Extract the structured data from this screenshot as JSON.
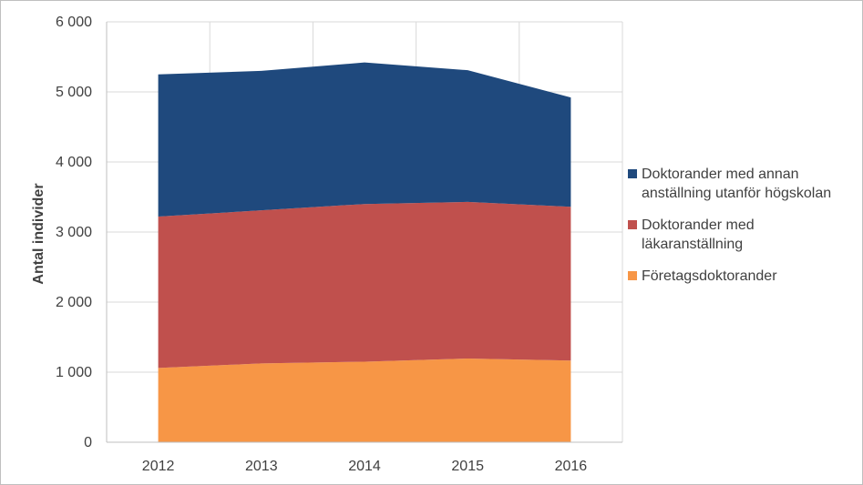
{
  "chart_data": {
    "type": "area",
    "stacked": true,
    "categories": [
      "2012",
      "2013",
      "2014",
      "2015",
      "2016"
    ],
    "series": [
      {
        "name": "Företagsdoktorander",
        "color": "#F79646",
        "values": [
          1060,
          1125,
          1150,
          1195,
          1165
        ]
      },
      {
        "name": "Doktorander med läkaranställning",
        "color": "#C0504D",
        "values": [
          2160,
          2185,
          2250,
          2235,
          2195
        ]
      },
      {
        "name": "Doktorander med annan anställning utanför högskolan",
        "color": "#1F497D",
        "values": [
          2030,
          1990,
          2020,
          1880,
          1560
        ]
      }
    ],
    "ylabel": "Antal individer",
    "xlabel": "",
    "ylim": [
      0,
      6000
    ],
    "yticks": [
      "0",
      "1 000",
      "2 000",
      "3 000",
      "4 000",
      "5 000",
      "6 000"
    ],
    "grid": true,
    "legend_position": "right"
  },
  "legend": [
    {
      "label": "Doktorander med annan anställning utanför högskolan",
      "color": "#1F497D"
    },
    {
      "label": "Doktorander med läkaranställning",
      "color": "#C0504D"
    },
    {
      "label": "Företagsdoktorander",
      "color": "#F79646"
    }
  ]
}
